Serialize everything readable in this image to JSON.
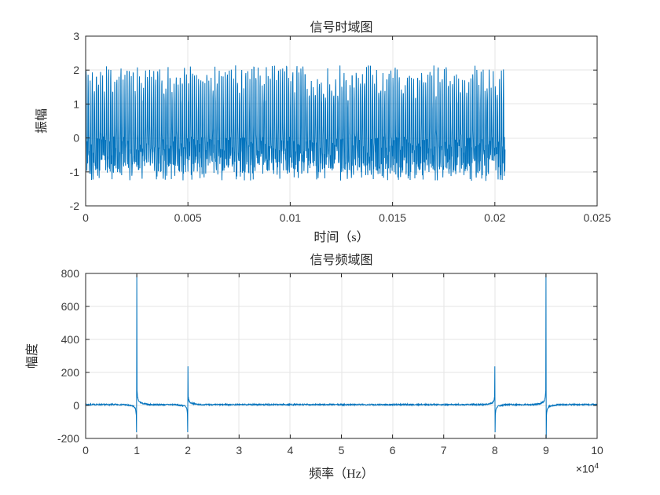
{
  "figure": {
    "background": "#ffffff",
    "line_color": "#0072BD",
    "axis_color": "#262626",
    "grid_color": "#e6e6e6",
    "tick_label_color": "#3b3b3b"
  },
  "chart_data": [
    {
      "type": "line",
      "id": "time-domain",
      "title": "信号时域图",
      "xlabel": "时间（s）",
      "ylabel": "振幅",
      "xlim": [
        0,
        0.025
      ],
      "ylim": [
        -2,
        3
      ],
      "xtick_values": [
        0,
        0.005,
        0.01,
        0.015,
        0.02,
        0.025
      ],
      "xtick_labels": [
        "0",
        "0.005",
        "0.01",
        "0.015",
        "0.02",
        "0.025"
      ],
      "ytick_values": [
        -2,
        -1,
        0,
        1,
        2,
        3
      ],
      "ytick_labels": [
        "-2",
        "-1",
        "0",
        "1",
        "2",
        "3"
      ],
      "grid": true,
      "legend": null,
      "signal": {
        "kind": "time_signal",
        "sample_rate": 100000,
        "duration": 0.0205,
        "dc": 0.1,
        "components": [
          {
            "freq": 10000,
            "amplitude": 1.1,
            "phase": 0
          },
          {
            "freq": 20000,
            "amplitude": 0.55,
            "phase": -1.5708
          }
        ],
        "noise_amplitude": 0.55,
        "observed_envelope": {
          "max": 2.3,
          "min": -1.35
        },
        "seed": 42
      }
    },
    {
      "type": "line",
      "id": "frequency-domain",
      "title": "信号频域图",
      "xlabel": "频率（Hz）",
      "ylabel": "幅度",
      "x_multiplier": {
        "base": "×10",
        "exp": "4"
      },
      "xlim": [
        0,
        100000
      ],
      "ylim": [
        -200,
        800
      ],
      "xtick_values": [
        0,
        10000,
        20000,
        30000,
        40000,
        50000,
        60000,
        70000,
        80000,
        90000,
        100000
      ],
      "xtick_labels": [
        "0",
        "1",
        "2",
        "3",
        "4",
        "5",
        "6",
        "7",
        "8",
        "9",
        "10"
      ],
      "ytick_values": [
        -200,
        0,
        200,
        400,
        600,
        800
      ],
      "ytick_labels": [
        "-200",
        "0",
        "200",
        "400",
        "600",
        "800"
      ],
      "grid": true,
      "legend": null,
      "signal": {
        "kind": "spectrum",
        "n_points": 2051,
        "baseline": 5,
        "noise_amplitude": 4,
        "seed": 7,
        "peaks": [
          {
            "center": 10000,
            "peak": 785,
            "dip": -175,
            "profile": [
              [
                -2500,
                0
              ],
              [
                -600,
                -10
              ],
              [
                -250,
                -25
              ],
              [
                -100,
                -60
              ],
              [
                -49,
                -175
              ],
              [
                0,
                785
              ],
              [
                49,
                80
              ],
              [
                150,
                45
              ],
              [
                400,
                18
              ],
              [
                1200,
                6
              ],
              [
                2500,
                0
              ]
            ]
          },
          {
            "center": 20000,
            "peak": 235,
            "dip": -170,
            "profile": [
              [
                -2500,
                0
              ],
              [
                -600,
                -8
              ],
              [
                -250,
                -22
              ],
              [
                -100,
                -55
              ],
              [
                -49,
                -170
              ],
              [
                0,
                235
              ],
              [
                49,
                50
              ],
              [
                150,
                28
              ],
              [
                400,
                12
              ],
              [
                1200,
                4
              ],
              [
                2500,
                0
              ]
            ]
          },
          {
            "center": 80000,
            "peak": 235,
            "dip": -170,
            "profile": [
              [
                -2500,
                0
              ],
              [
                -1200,
                4
              ],
              [
                -400,
                12
              ],
              [
                -150,
                28
              ],
              [
                -49,
                50
              ],
              [
                0,
                235
              ],
              [
                49,
                -170
              ],
              [
                100,
                -55
              ],
              [
                250,
                -22
              ],
              [
                600,
                -8
              ],
              [
                2500,
                0
              ]
            ]
          },
          {
            "center": 90000,
            "peak": 785,
            "dip": -260,
            "profile": [
              [
                -2500,
                0
              ],
              [
                -1200,
                6
              ],
              [
                -400,
                18
              ],
              [
                -150,
                45
              ],
              [
                -49,
                80
              ],
              [
                0,
                785
              ],
              [
                49,
                -260
              ],
              [
                100,
                -60
              ],
              [
                250,
                -25
              ],
              [
                600,
                -10
              ],
              [
                2500,
                0
              ]
            ]
          }
        ]
      }
    }
  ]
}
